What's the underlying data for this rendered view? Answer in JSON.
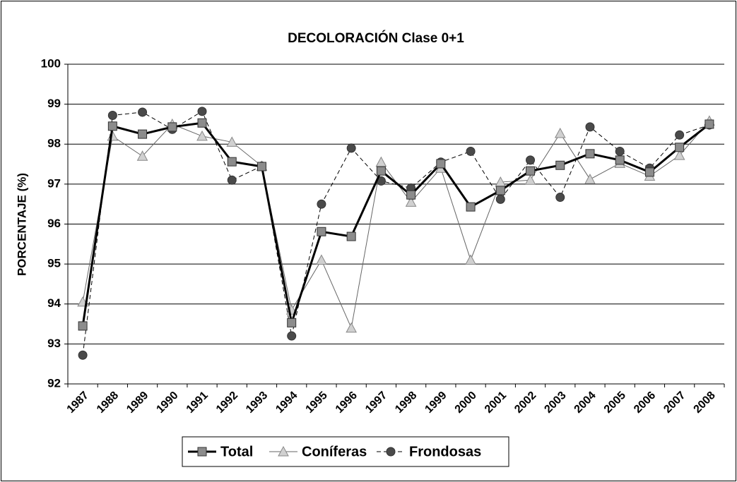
{
  "chart_data": {
    "type": "line",
    "title": "DECOLORACIÓN Clase 0+1",
    "y_label": "PORCENTAJE (%)",
    "categories": [
      "1987",
      "1988",
      "1989",
      "1990",
      "1991",
      "1992",
      "1993",
      "1994",
      "1995",
      "1996",
      "1997",
      "1998",
      "1999",
      "2000",
      "2001",
      "2002",
      "2003",
      "2004",
      "2005",
      "2006",
      "2007",
      "2008"
    ],
    "series": [
      {
        "name": "Total",
        "color": "#8c8c8c",
        "marker": "square",
        "values": [
          93.45,
          98.45,
          98.25,
          98.43,
          98.53,
          97.56,
          97.44,
          93.53,
          95.81,
          95.69,
          97.33,
          96.73,
          97.51,
          96.43,
          96.84,
          97.33,
          97.47,
          97.76,
          97.6,
          97.3,
          97.92,
          98.5
        ]
      },
      {
        "name": "Coníferas",
        "color": "#d0d0d0",
        "marker": "triangle",
        "values": [
          94.05,
          98.2,
          97.7,
          98.5,
          98.2,
          98.05,
          97.45,
          93.85,
          95.1,
          93.4,
          97.55,
          96.55,
          97.4,
          95.1,
          97.05,
          97.1,
          98.27,
          97.12,
          97.52,
          97.2,
          97.72,
          98.58
        ]
      },
      {
        "name": "Frondosas",
        "color": "#4a4a4a",
        "marker": "circle",
        "values": [
          92.72,
          98.72,
          98.8,
          98.37,
          98.82,
          97.1,
          97.45,
          93.2,
          96.5,
          97.9,
          97.08,
          96.9,
          97.55,
          97.82,
          96.62,
          97.6,
          96.67,
          98.43,
          97.82,
          97.4,
          98.23,
          98.48
        ]
      }
    ],
    "ylim": [
      92,
      100
    ],
    "yticks": [
      92,
      93,
      94,
      95,
      96,
      97,
      98,
      99,
      100
    ],
    "grid": true,
    "legend": "bottom"
  }
}
